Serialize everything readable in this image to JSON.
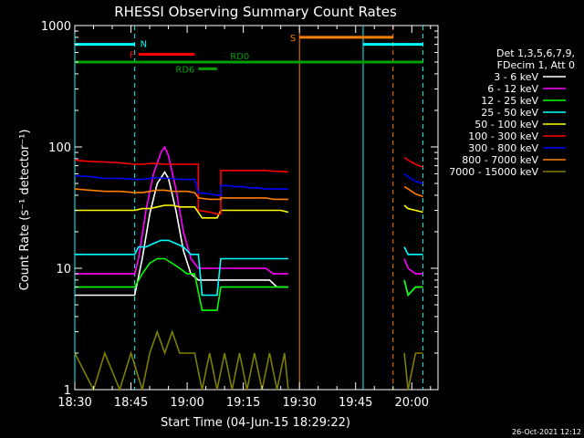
{
  "chart_data": {
    "type": "line",
    "title": "RHESSI Observing Summary Count Rates",
    "xlabel": "Start Time (04-Jun-15 18:29:22)",
    "ylabel": "Count Rate (s⁻¹ detector⁻¹)",
    "yscale": "log",
    "ylim": [
      1,
      1000
    ],
    "xlim_minutes": [
      0,
      97
    ],
    "x_ticks": [
      {
        "label": "18:30",
        "t": 0
      },
      {
        "label": "18:45",
        "t": 15
      },
      {
        "label": "19:00",
        "t": 30
      },
      {
        "label": "19:15",
        "t": 45
      },
      {
        "label": "19:30",
        "t": 60
      },
      {
        "label": "19:45",
        "t": 75
      },
      {
        "label": "20:00",
        "t": 90
      }
    ],
    "y_ticks": [
      {
        "label": "1",
        "v": 1
      },
      {
        "label": "10",
        "v": 10
      },
      {
        "label": "100",
        "v": 100
      },
      {
        "label": "1000",
        "v": 1000
      }
    ],
    "legend_header": [
      "Det 1,3,5,6,7,9,",
      "FDecim 1, Att 0"
    ],
    "legend_position": "right",
    "series": [
      {
        "name": "3 - 6 keV",
        "color": "#ffffff",
        "points": [
          [
            0,
            6
          ],
          [
            16,
            6
          ],
          [
            18,
            12
          ],
          [
            20,
            28
          ],
          [
            22,
            50
          ],
          [
            24,
            62
          ],
          [
            25,
            55
          ],
          [
            27,
            30
          ],
          [
            29,
            14
          ],
          [
            31,
            9
          ],
          [
            33,
            8
          ],
          [
            34,
            8
          ],
          [
            36,
            8
          ],
          [
            38,
            8
          ],
          [
            40,
            8
          ],
          [
            42,
            8
          ],
          [
            44,
            8
          ],
          [
            46,
            8
          ],
          [
            48,
            8
          ],
          [
            50,
            8
          ],
          [
            52,
            8
          ],
          [
            54,
            7
          ],
          [
            56,
            7
          ],
          [
            57,
            7
          ],
          [
            57,
            null
          ],
          [
            88,
            null
          ],
          [
            88,
            8
          ],
          [
            89,
            6
          ],
          [
            91,
            7
          ],
          [
            93,
            7
          ]
        ]
      },
      {
        "name": "6 - 12 keV",
        "color": "#ff00ff",
        "points": [
          [
            0,
            9
          ],
          [
            16,
            9
          ],
          [
            17,
            12
          ],
          [
            19,
            30
          ],
          [
            21,
            60
          ],
          [
            23,
            90
          ],
          [
            24,
            100
          ],
          [
            25,
            85
          ],
          [
            27,
            45
          ],
          [
            29,
            20
          ],
          [
            31,
            12
          ],
          [
            33,
            10
          ],
          [
            35,
            10
          ],
          [
            37,
            10
          ],
          [
            39,
            10
          ],
          [
            41,
            10
          ],
          [
            43,
            10
          ],
          [
            45,
            10
          ],
          [
            47,
            10
          ],
          [
            49,
            10
          ],
          [
            51,
            10
          ],
          [
            53,
            9
          ],
          [
            55,
            9
          ],
          [
            57,
            9
          ],
          [
            57,
            null
          ],
          [
            88,
            null
          ],
          [
            88,
            12
          ],
          [
            89,
            10
          ],
          [
            91,
            9
          ],
          [
            93,
            9
          ]
        ]
      },
      {
        "name": "12 - 25 keV",
        "color": "#00ff00",
        "points": [
          [
            0,
            7
          ],
          [
            16,
            7
          ],
          [
            18,
            9
          ],
          [
            20,
            11
          ],
          [
            22,
            12
          ],
          [
            24,
            12
          ],
          [
            26,
            11
          ],
          [
            28,
            10
          ],
          [
            30,
            9
          ],
          [
            32,
            9
          ],
          [
            34,
            4.5
          ],
          [
            36,
            4.5
          ],
          [
            38,
            4.5
          ],
          [
            39,
            7
          ],
          [
            41,
            7
          ],
          [
            43,
            7
          ],
          [
            45,
            7
          ],
          [
            47,
            7
          ],
          [
            49,
            7
          ],
          [
            51,
            7
          ],
          [
            53,
            7
          ],
          [
            55,
            7
          ],
          [
            57,
            7
          ],
          [
            57,
            null
          ],
          [
            88,
            null
          ],
          [
            88,
            8
          ],
          [
            89,
            6
          ],
          [
            91,
            7
          ],
          [
            93,
            7
          ]
        ]
      },
      {
        "name": "25 - 50 keV",
        "color": "#00ffff",
        "points": [
          [
            0,
            13
          ],
          [
            16,
            13
          ],
          [
            17,
            15
          ],
          [
            19,
            15
          ],
          [
            21,
            16
          ],
          [
            23,
            17
          ],
          [
            25,
            17
          ],
          [
            27,
            16
          ],
          [
            29,
            15
          ],
          [
            31,
            13
          ],
          [
            33,
            13
          ],
          [
            34,
            6
          ],
          [
            36,
            6
          ],
          [
            38,
            6
          ],
          [
            39,
            12
          ],
          [
            41,
            12
          ],
          [
            43,
            12
          ],
          [
            45,
            12
          ],
          [
            47,
            12
          ],
          [
            49,
            12
          ],
          [
            51,
            12
          ],
          [
            53,
            12
          ],
          [
            55,
            12
          ],
          [
            57,
            12
          ],
          [
            57,
            null
          ],
          [
            88,
            null
          ],
          [
            88,
            15
          ],
          [
            89,
            13
          ],
          [
            91,
            13
          ],
          [
            93,
            13
          ]
        ]
      },
      {
        "name": "50 - 100 keV",
        "color": "#ffff00",
        "points": [
          [
            0,
            30
          ],
          [
            16,
            30
          ],
          [
            18,
            31
          ],
          [
            20,
            31
          ],
          [
            22,
            32
          ],
          [
            24,
            33
          ],
          [
            26,
            33
          ],
          [
            28,
            32
          ],
          [
            30,
            32
          ],
          [
            32,
            32
          ],
          [
            34,
            26
          ],
          [
            36,
            26
          ],
          [
            38,
            26
          ],
          [
            39,
            30
          ],
          [
            41,
            30
          ],
          [
            43,
            30
          ],
          [
            45,
            30
          ],
          [
            47,
            30
          ],
          [
            49,
            30
          ],
          [
            51,
            30
          ],
          [
            53,
            30
          ],
          [
            55,
            30
          ],
          [
            57,
            29
          ],
          [
            57,
            null
          ],
          [
            88,
            null
          ],
          [
            88,
            33
          ],
          [
            89,
            31
          ],
          [
            91,
            30
          ],
          [
            93,
            29
          ]
        ]
      },
      {
        "name": "100 - 300 keV",
        "color": "#ff0000",
        "points": [
          [
            0,
            78
          ],
          [
            4,
            76
          ],
          [
            8,
            75
          ],
          [
            12,
            74
          ],
          [
            16,
            72
          ],
          [
            18,
            72
          ],
          [
            20,
            73
          ],
          [
            22,
            73
          ],
          [
            24,
            72
          ],
          [
            26,
            72
          ],
          [
            28,
            72
          ],
          [
            30,
            72
          ],
          [
            32,
            72
          ],
          [
            33,
            72
          ],
          [
            33,
            30
          ],
          [
            36,
            29
          ],
          [
            38,
            28
          ],
          [
            39,
            28
          ],
          [
            39,
            64
          ],
          [
            41,
            64
          ],
          [
            43,
            64
          ],
          [
            45,
            64
          ],
          [
            47,
            64
          ],
          [
            49,
            64
          ],
          [
            51,
            64
          ],
          [
            53,
            63
          ],
          [
            55,
            63
          ],
          [
            57,
            62
          ],
          [
            57,
            null
          ],
          [
            88,
            null
          ],
          [
            88,
            82
          ],
          [
            89,
            78
          ],
          [
            91,
            72
          ],
          [
            93,
            68
          ]
        ]
      },
      {
        "name": "300 - 800 keV",
        "color": "#0000ff",
        "points": [
          [
            0,
            58
          ],
          [
            4,
            57
          ],
          [
            8,
            55
          ],
          [
            12,
            55
          ],
          [
            16,
            54
          ],
          [
            18,
            54
          ],
          [
            20,
            55
          ],
          [
            22,
            56
          ],
          [
            24,
            55
          ],
          [
            26,
            55
          ],
          [
            28,
            54
          ],
          [
            30,
            54
          ],
          [
            32,
            54
          ],
          [
            33,
            42
          ],
          [
            36,
            41
          ],
          [
            38,
            40
          ],
          [
            39,
            40
          ],
          [
            39,
            48
          ],
          [
            41,
            48
          ],
          [
            43,
            47
          ],
          [
            45,
            47
          ],
          [
            47,
            46
          ],
          [
            49,
            46
          ],
          [
            51,
            45
          ],
          [
            53,
            45
          ],
          [
            55,
            45
          ],
          [
            57,
            45
          ],
          [
            57,
            null
          ],
          [
            88,
            null
          ],
          [
            88,
            60
          ],
          [
            89,
            57
          ],
          [
            91,
            52
          ],
          [
            93,
            50
          ]
        ]
      },
      {
        "name": "800 - 7000 keV",
        "color": "#ff7f00",
        "points": [
          [
            0,
            45
          ],
          [
            4,
            44
          ],
          [
            8,
            43
          ],
          [
            12,
            43
          ],
          [
            16,
            42
          ],
          [
            18,
            42
          ],
          [
            20,
            43
          ],
          [
            22,
            44
          ],
          [
            24,
            44
          ],
          [
            26,
            43
          ],
          [
            28,
            43
          ],
          [
            30,
            43
          ],
          [
            32,
            42
          ],
          [
            33,
            38
          ],
          [
            36,
            37
          ],
          [
            38,
            37
          ],
          [
            39,
            37
          ],
          [
            39,
            38
          ],
          [
            41,
            38
          ],
          [
            43,
            38
          ],
          [
            45,
            38
          ],
          [
            47,
            38
          ],
          [
            49,
            38
          ],
          [
            51,
            38
          ],
          [
            53,
            37
          ],
          [
            55,
            37
          ],
          [
            57,
            37
          ],
          [
            57,
            null
          ],
          [
            88,
            null
          ],
          [
            88,
            47
          ],
          [
            89,
            45
          ],
          [
            91,
            41
          ],
          [
            93,
            39
          ]
        ]
      },
      {
        "name": "7000 - 15000 keV",
        "color": "#7f7f00",
        "points": [
          [
            0,
            2
          ],
          [
            5,
            1
          ],
          [
            8,
            2
          ],
          [
            12,
            1
          ],
          [
            15,
            2
          ],
          [
            18,
            1
          ],
          [
            20,
            2
          ],
          [
            22,
            3
          ],
          [
            24,
            2
          ],
          [
            26,
            3
          ],
          [
            28,
            2
          ],
          [
            30,
            2
          ],
          [
            32,
            2
          ],
          [
            34,
            1
          ],
          [
            36,
            2
          ],
          [
            38,
            1
          ],
          [
            40,
            2
          ],
          [
            42,
            1
          ],
          [
            44,
            2
          ],
          [
            46,
            1
          ],
          [
            48,
            2
          ],
          [
            50,
            1
          ],
          [
            52,
            2
          ],
          [
            54,
            1
          ],
          [
            56,
            2
          ],
          [
            57,
            1
          ],
          [
            57,
            null
          ],
          [
            88,
            null
          ],
          [
            88,
            2
          ],
          [
            89,
            1
          ],
          [
            91,
            2
          ],
          [
            93,
            2
          ]
        ]
      }
    ],
    "flag_bars": [
      {
        "label": "N",
        "color": "#00ffff",
        "t0": 0,
        "t1": 16,
        "level": 700,
        "label_side": "right"
      },
      {
        "label": "N",
        "color": "#00ffff",
        "t0": 77,
        "t1": 93,
        "level": 700,
        "label_side": "none"
      },
      {
        "label": "F",
        "color": "#ff0000",
        "t0": 17,
        "t1": 32,
        "level": 580,
        "label_side": "left"
      },
      {
        "label": "RD0",
        "color": "#00a000",
        "t0": 0,
        "t1": 93,
        "level": 500,
        "label_side": "over"
      },
      {
        "label": "RD6",
        "color": "#00a000",
        "t0": 33,
        "t1": 38,
        "level": 440,
        "label_side": "left"
      },
      {
        "label": "S",
        "color": "#ff7f00",
        "t0": 60,
        "t1": 85,
        "level": 800,
        "label_side": "left"
      }
    ],
    "vertical_markers": [
      {
        "t": 0,
        "color": "#00ffff",
        "style": "solid"
      },
      {
        "t": 16,
        "color": "#00ffff",
        "style": "dashed"
      },
      {
        "t": 60,
        "color": "#ff7f00",
        "style": "solid"
      },
      {
        "t": 77,
        "color": "#00ffff",
        "style": "solid"
      },
      {
        "t": 85,
        "color": "#ff7f00",
        "style": "dashed"
      },
      {
        "t": 93,
        "color": "#00ffff",
        "style": "dashed"
      }
    ],
    "footer_stamp": "26-Oct-2021 12:12"
  }
}
